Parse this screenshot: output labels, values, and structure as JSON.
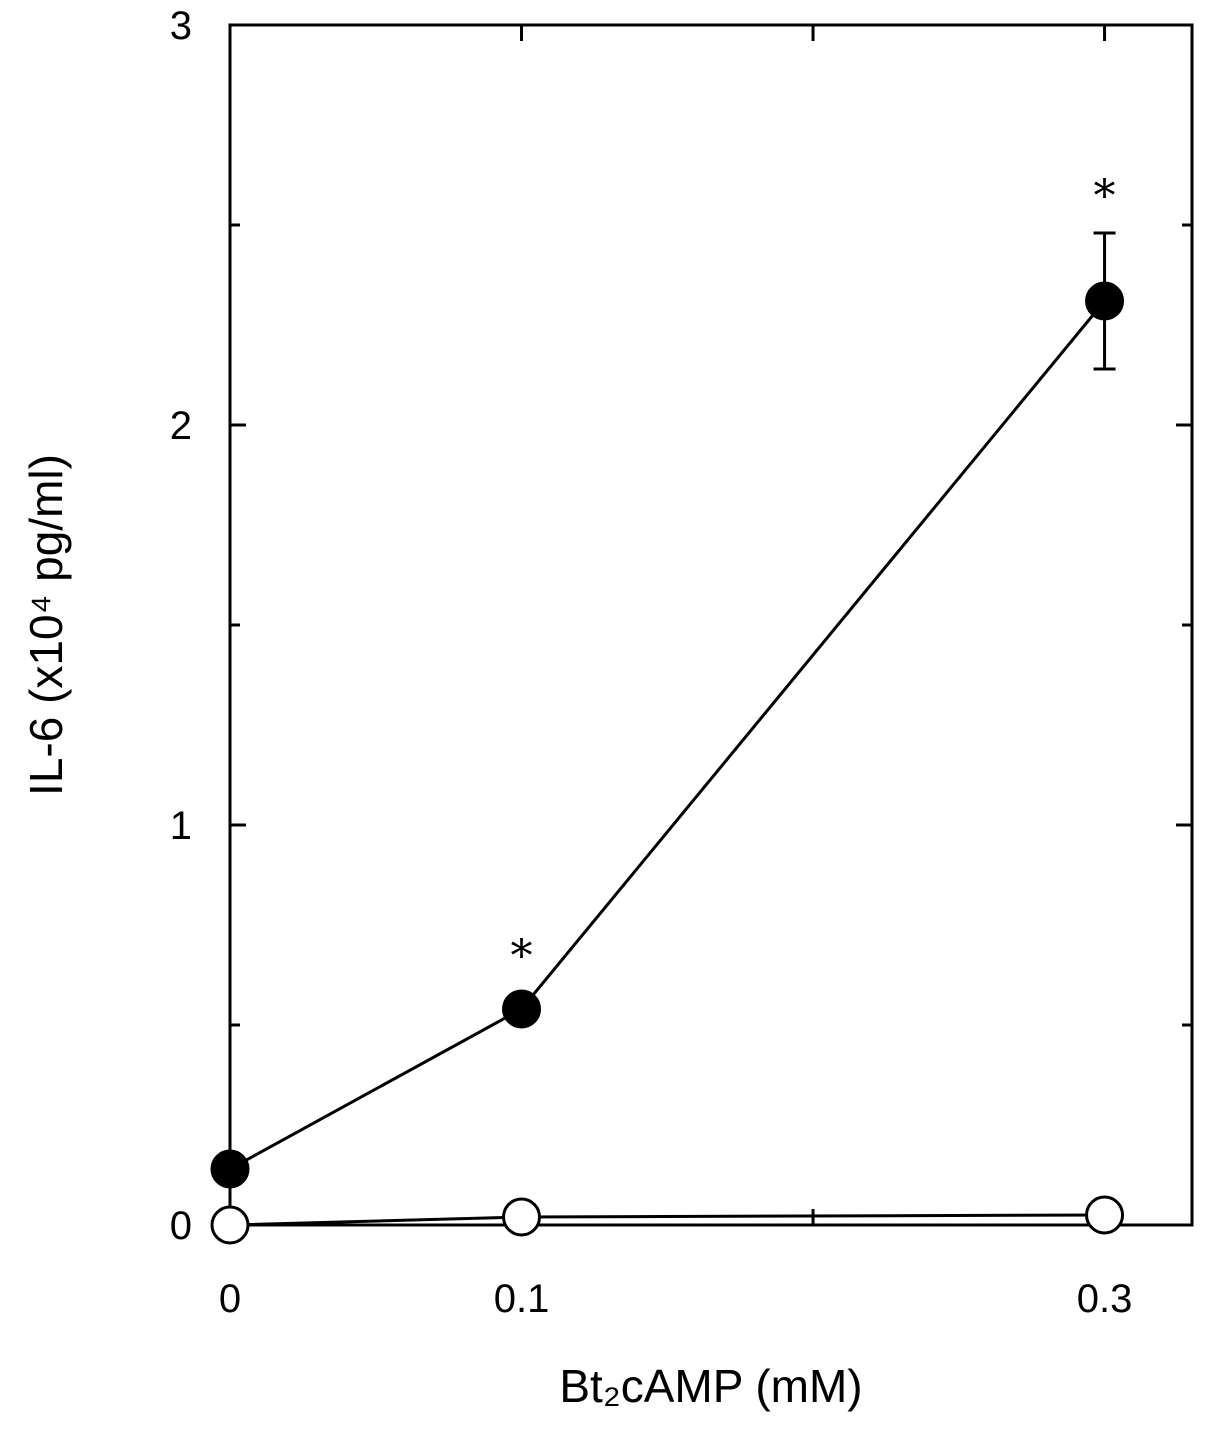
{
  "chart_data": {
    "type": "line",
    "title": "",
    "xlabel": "Bt₂cAMP (mM)",
    "ylabel": "IL-6 (x10⁴ pg/ml)",
    "x": [
      0,
      0.1,
      0.3
    ],
    "x_tick_labels": [
      "0",
      "0.1",
      "0.3"
    ],
    "xlim": [
      0,
      0.33
    ],
    "ylim": [
      0,
      3
    ],
    "y_ticks": [
      0,
      1,
      2,
      3
    ],
    "y_tick_labels": [
      "0",
      "1",
      "2",
      "3"
    ],
    "y_minor_ticks": [
      0.5,
      1.5,
      2.5
    ],
    "grid": false,
    "legend": "none",
    "series": [
      {
        "marker": "filled-circle",
        "color": "#000000",
        "values": [
          0.14,
          0.54,
          2.31
        ],
        "error": [
          0,
          0,
          0.17
        ]
      },
      {
        "marker": "open-circle",
        "color": "#000000",
        "values": [
          0.0,
          0.02,
          0.025
        ],
        "error": [
          0,
          0,
          0
        ]
      }
    ],
    "annotations": [
      {
        "text": "*",
        "x": 0.1,
        "y": 0.7
      },
      {
        "text": "*",
        "x": 0.3,
        "y": 2.6
      }
    ]
  }
}
